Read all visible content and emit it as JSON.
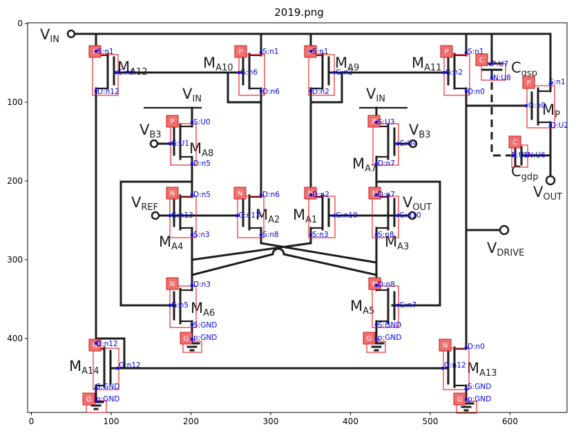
{
  "title": "2019.png",
  "axes": {
    "x_ticks": [
      "0",
      "100",
      "200",
      "300",
      "400",
      "500",
      "600"
    ],
    "y_ticks": [
      "0",
      "100",
      "200",
      "300",
      "400"
    ]
  },
  "circuit": {
    "vin": "V",
    "vin_sub": "IN",
    "vin2": "V",
    "vin2_sub": "IN",
    "vin3": "V",
    "vin3_sub": "IN",
    "vb3_left": "V",
    "vb3_left_sub": "B3",
    "vb3_right": "V",
    "vb3_right_sub": "B3",
    "vref": "V",
    "vref_sub": "REF",
    "vout_sig": "V",
    "vout_sig_sub": "OUT",
    "vout": "V",
    "vout_sub": "OUT",
    "vdrive": "V",
    "vdrive_sub": "DRIVE",
    "cgsp": "C",
    "cgsp_sub": "gsp",
    "cgdp": "C",
    "cgdp_sub": "gdp",
    "transistors": {
      "ma12": {
        "m": "M",
        "sub": "A12"
      },
      "ma10": {
        "m": "M",
        "sub": "A10"
      },
      "ma9": {
        "m": "M",
        "sub": "A9"
      },
      "ma11": {
        "m": "M",
        "sub": "A11"
      },
      "mp": {
        "m": "M",
        "sub": "P"
      },
      "ma8": {
        "m": "M",
        "sub": "A8"
      },
      "ma7": {
        "m": "M",
        "sub": "A7"
      },
      "ma4": {
        "m": "M",
        "sub": "A4"
      },
      "ma2": {
        "m": "M",
        "sub": "A2"
      },
      "ma1": {
        "m": "M",
        "sub": "A1"
      },
      "ma3": {
        "m": "M",
        "sub": "A3"
      },
      "ma6": {
        "m": "M",
        "sub": "A6"
      },
      "ma5": {
        "m": "M",
        "sub": "A5"
      },
      "ma14": {
        "m": "M",
        "sub": "A14"
      },
      "ma13": {
        "m": "M",
        "sub": "A13"
      }
    }
  },
  "annotations": {
    "components": [
      {
        "id": "ma12",
        "tag": "P",
        "pins": [
          "S:n1",
          "G:n6",
          "D:n12"
        ]
      },
      {
        "id": "ma10",
        "tag": "P",
        "pins": [
          "S:n1",
          "G:n6",
          "D:n6"
        ]
      },
      {
        "id": "ma9",
        "tag": "P",
        "pins": [
          "S:n1",
          "G:n2",
          "D:n2"
        ]
      },
      {
        "id": "ma11",
        "tag": "P",
        "pins": [
          "S:n1",
          "G:n2",
          "D:n0"
        ]
      },
      {
        "id": "cgsp",
        "tag": "C",
        "pins": [
          "P:U7",
          "N:U8"
        ]
      },
      {
        "id": "mp",
        "tag": "P",
        "pins": [
          "S:n1",
          "G:n0",
          "D:U2"
        ]
      },
      {
        "id": "ma8",
        "tag": "P",
        "pins": [
          "S:U0",
          "G:U1",
          "D:n5"
        ]
      },
      {
        "id": "ma7",
        "tag": "P",
        "pins": [
          "S:U3",
          "G:U4",
          "D:n7"
        ]
      },
      {
        "id": "cgdp",
        "tag": "C",
        "pins": [
          "P:U5",
          "N:U6"
        ]
      },
      {
        "id": "ma4",
        "tag": "N",
        "pins": [
          "D:n5",
          "G:n13",
          "S:n3"
        ]
      },
      {
        "id": "ma2",
        "tag": "N",
        "pins": [
          "D:n6",
          "G:n13",
          "S:n8"
        ]
      },
      {
        "id": "ma1",
        "tag": "N",
        "pins": [
          "D:n2",
          "G:n10",
          "S:n3"
        ]
      },
      {
        "id": "ma3",
        "tag": "N",
        "pins": [
          "D:n7",
          "G:n10",
          "S:n8"
        ]
      },
      {
        "id": "ma6",
        "tag": "N",
        "pins": [
          "D:n3",
          "G:n5",
          "S:GND"
        ]
      },
      {
        "id": "gnd6",
        "tag": "G",
        "pins": [
          "p:GND"
        ]
      },
      {
        "id": "ma5",
        "tag": "N",
        "pins": [
          "D:n8",
          "G:n7",
          "S:GND"
        ]
      },
      {
        "id": "gnd5",
        "tag": "G",
        "pins": [
          "p:GND"
        ]
      },
      {
        "id": "ma14",
        "tag": "N",
        "pins": [
          "D:n12",
          "G:n12",
          "S:GND"
        ]
      },
      {
        "id": "gnd14",
        "tag": "G",
        "pins": [
          "p:GND"
        ]
      },
      {
        "id": "ma13",
        "tag": "N",
        "pins": [
          "D:n0",
          "G:n12",
          "S:GND"
        ]
      },
      {
        "id": "gnd13",
        "tag": "G",
        "pins": [
          "p:GND"
        ]
      }
    ]
  }
}
